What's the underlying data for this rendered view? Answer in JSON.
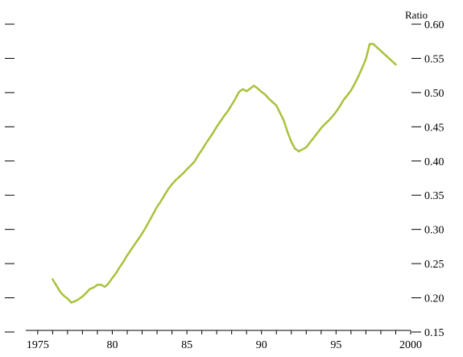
{
  "chart_data": {
    "type": "line",
    "title": "",
    "xlabel": "",
    "ylabel": "Ratio",
    "xlim": [
      1974.2,
      2000
    ],
    "ylim": [
      0.15,
      0.6
    ],
    "x_ticks": [
      1975,
      1980,
      1985,
      1990,
      1995,
      2000
    ],
    "x_tick_labels": [
      "1975",
      "80",
      "85",
      "90",
      "95",
      "2000"
    ],
    "y_ticks": [
      0.15,
      0.2,
      0.25,
      0.3,
      0.35,
      0.4,
      0.45,
      0.5,
      0.55,
      0.6
    ],
    "y_tick_labels": [
      "0.15",
      "0.20",
      "0.25",
      "0.30",
      "0.35",
      "0.40",
      "0.45",
      "0.50",
      "0.55",
      "0.60"
    ],
    "grid": false,
    "line_color": "#a8c23c",
    "series": [
      {
        "x": [
          1976.0,
          1976.25,
          1976.5,
          1976.75,
          1977.0,
          1977.25,
          1977.5,
          1977.75,
          1978.0,
          1978.25,
          1978.5,
          1978.75,
          1979.0,
          1979.25,
          1979.5,
          1979.75,
          1980.0,
          1980.25,
          1980.5,
          1980.75,
          1981.0,
          1981.25,
          1981.5,
          1981.75,
          1982.0,
          1982.25,
          1982.5,
          1982.75,
          1983.0,
          1983.25,
          1983.5,
          1983.75,
          1984.0,
          1984.25,
          1984.5,
          1984.75,
          1985.0,
          1985.25,
          1985.5,
          1985.75,
          1986.0,
          1986.25,
          1986.5,
          1986.75,
          1987.0,
          1987.25,
          1987.5,
          1987.75,
          1988.0,
          1988.25,
          1988.5,
          1988.75,
          1989.0,
          1989.25,
          1989.5,
          1989.75,
          1990.0,
          1990.25,
          1990.5,
          1990.75,
          1991.0,
          1991.25,
          1991.5,
          1991.75,
          1992.0,
          1992.25,
          1992.5,
          1992.75,
          1993.0,
          1993.25,
          1993.5,
          1993.75,
          1994.0,
          1994.25,
          1994.5,
          1994.75,
          1995.0,
          1995.25,
          1995.5,
          1995.75,
          1996.0,
          1996.25,
          1996.5,
          1996.75,
          1997.0,
          1997.25,
          1997.5,
          1997.75,
          1998.0,
          1998.25,
          1998.5,
          1998.75,
          1999.0
        ],
        "values": [
          0.227,
          0.218,
          0.209,
          0.203,
          0.199,
          0.193,
          0.195,
          0.198,
          0.202,
          0.207,
          0.213,
          0.215,
          0.219,
          0.219,
          0.216,
          0.221,
          0.229,
          0.236,
          0.245,
          0.253,
          0.262,
          0.27,
          0.278,
          0.286,
          0.294,
          0.303,
          0.313,
          0.323,
          0.333,
          0.341,
          0.35,
          0.359,
          0.366,
          0.372,
          0.377,
          0.382,
          0.388,
          0.393,
          0.399,
          0.408,
          0.416,
          0.425,
          0.433,
          0.441,
          0.45,
          0.458,
          0.466,
          0.473,
          0.482,
          0.491,
          0.501,
          0.505,
          0.502,
          0.506,
          0.51,
          0.506,
          0.501,
          0.497,
          0.491,
          0.486,
          0.481,
          0.47,
          0.459,
          0.442,
          0.428,
          0.418,
          0.414,
          0.417,
          0.42,
          0.427,
          0.434,
          0.441,
          0.448,
          0.454,
          0.459,
          0.465,
          0.472,
          0.48,
          0.489,
          0.496,
          0.503,
          0.513,
          0.524,
          0.536,
          0.549,
          0.571,
          0.571,
          0.566,
          0.561,
          0.556,
          0.551,
          0.546,
          0.541
        ]
      }
    ]
  }
}
